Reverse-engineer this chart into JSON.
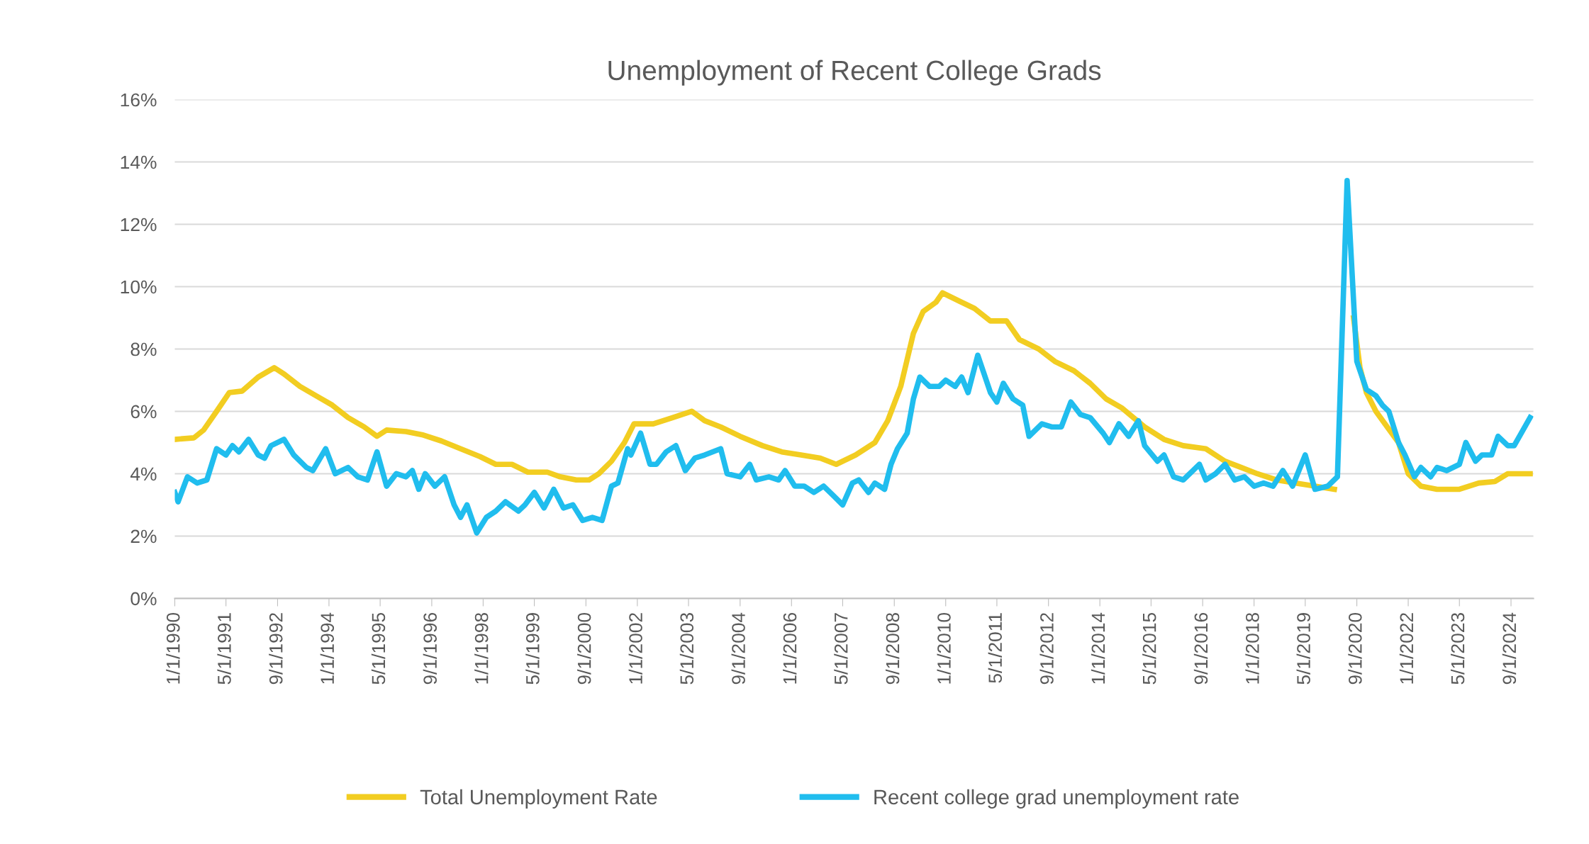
{
  "chart_data": {
    "type": "line",
    "title": "Unemployment of Recent College Grads",
    "xlim": [
      "1990-01-01",
      "2025-04-01"
    ],
    "xticks": [
      {
        "value": "1990-01-01",
        "label": "1/1/1990"
      },
      {
        "value": "1991-05-01",
        "label": "5/1/1991"
      },
      {
        "value": "1992-09-01",
        "label": "9/1/1992"
      },
      {
        "value": "1994-01-01",
        "label": "1/1/1994"
      },
      {
        "value": "1995-05-01",
        "label": "5/1/1995"
      },
      {
        "value": "1996-09-01",
        "label": "9/1/1996"
      },
      {
        "value": "1998-01-01",
        "label": "1/1/1998"
      },
      {
        "value": "1999-05-01",
        "label": "5/1/1999"
      },
      {
        "value": "2000-09-01",
        "label": "9/1/2000"
      },
      {
        "value": "2002-01-01",
        "label": "1/1/2002"
      },
      {
        "value": "2003-05-01",
        "label": "5/1/2003"
      },
      {
        "value": "2004-09-01",
        "label": "9/1/2004"
      },
      {
        "value": "2006-01-01",
        "label": "1/1/2006"
      },
      {
        "value": "2007-05-01",
        "label": "5/1/2007"
      },
      {
        "value": "2008-09-01",
        "label": "9/1/2008"
      },
      {
        "value": "2010-01-01",
        "label": "1/1/2010"
      },
      {
        "value": "2011-05-01",
        "label": "5/1/2011"
      },
      {
        "value": "2012-09-01",
        "label": "9/1/2012"
      },
      {
        "value": "2014-01-01",
        "label": "1/1/2014"
      },
      {
        "value": "2015-05-01",
        "label": "5/1/2015"
      },
      {
        "value": "2016-09-01",
        "label": "9/1/2016"
      },
      {
        "value": "2018-01-01",
        "label": "1/1/2018"
      },
      {
        "value": "2019-05-01",
        "label": "5/1/2019"
      },
      {
        "value": "2020-09-01",
        "label": "9/1/2020"
      },
      {
        "value": "2022-01-01",
        "label": "1/1/2022"
      },
      {
        "value": "2023-05-01",
        "label": "5/1/2023"
      },
      {
        "value": "2024-09-01",
        "label": "9/1/2024"
      }
    ],
    "ylim": [
      0,
      16
    ],
    "yticks": [
      {
        "value": 0,
        "label": "0%"
      },
      {
        "value": 2,
        "label": "2%"
      },
      {
        "value": 4,
        "label": "4%"
      },
      {
        "value": 6,
        "label": "6%"
      },
      {
        "value": 8,
        "label": "8%"
      },
      {
        "value": 10,
        "label": "10%"
      },
      {
        "value": 12,
        "label": "12%"
      },
      {
        "value": 14,
        "label": "14%"
      },
      {
        "value": 16,
        "label": "16%"
      }
    ],
    "grid": "y",
    "legend": "bottom",
    "marker": "none",
    "line_style": "solid",
    "series": [
      {
        "name": "Total Unemployment Rate",
        "color": "#f2cd21",
        "x": [
          "1990-01",
          "1990-07",
          "1990-10",
          "1991-02",
          "1991-06",
          "1991-10",
          "1992-03",
          "1992-08",
          "1992-11",
          "1993-04",
          "1993-09",
          "1994-02",
          "1994-07",
          "1994-12",
          "1995-04",
          "1995-07",
          "1996-01",
          "1996-06",
          "1996-12",
          "1997-06",
          "1997-12",
          "1998-05",
          "1998-10",
          "1999-03",
          "1999-09",
          "2000-01",
          "2000-06",
          "2000-10",
          "2001-01",
          "2001-05",
          "2001-09",
          "2001-12",
          "2002-06",
          "2002-12",
          "2003-06",
          "2003-10",
          "2004-03",
          "2004-09",
          "2005-04",
          "2005-10",
          "2006-04",
          "2006-10",
          "2007-03",
          "2007-09",
          "2008-03",
          "2008-07",
          "2008-11",
          "2009-03",
          "2009-06",
          "2009-10",
          "2009-12",
          "2010-06",
          "2010-10",
          "2011-03",
          "2011-08",
          "2011-12",
          "2012-06",
          "2012-11",
          "2013-05",
          "2013-10",
          "2014-03",
          "2014-08",
          "2015-03",
          "2015-09",
          "2016-03",
          "2016-10",
          "2017-04",
          "2017-09",
          "2018-02",
          "2018-08",
          "2019-02",
          "2019-08",
          "2020-02",
          "2020-06",
          "2020-08",
          "2020-10",
          "2020-12",
          "2021-03",
          "2021-10",
          "2022-01",
          "2022-05",
          "2022-10",
          "2023-05",
          "2023-11",
          "2024-04",
          "2024-08",
          "2025-03"
        ],
        "values": [
          5.1,
          5.15,
          5.4,
          6.0,
          6.6,
          6.65,
          7.1,
          7.4,
          7.2,
          6.8,
          6.5,
          6.2,
          5.8,
          5.5,
          5.2,
          5.4,
          5.35,
          5.25,
          5.05,
          4.8,
          4.55,
          4.3,
          4.3,
          4.05,
          4.05,
          3.9,
          3.8,
          3.8,
          4.0,
          4.4,
          5.0,
          5.6,
          5.6,
          5.8,
          6.0,
          5.7,
          5.5,
          5.2,
          4.9,
          4.7,
          4.6,
          4.5,
          4.3,
          4.6,
          5.0,
          5.7,
          6.8,
          8.5,
          9.2,
          9.5,
          9.8,
          9.5,
          9.3,
          8.9,
          8.9,
          8.3,
          8.0,
          7.6,
          7.3,
          6.9,
          6.4,
          6.1,
          5.5,
          5.1,
          4.9,
          4.8,
          4.4,
          4.2,
          4.0,
          3.8,
          3.7,
          3.6,
          3.5,
          null,
          9.0,
          7.4,
          6.6,
          6.0,
          5.0,
          4.0,
          3.6,
          3.5,
          3.5,
          3.7,
          3.75,
          4.0,
          4.0
        ]
      },
      {
        "name": "Recent college grad unemployment rate",
        "color": "#20bdee",
        "x": [
          "1990-01",
          "1990-02",
          "1990-05",
          "1990-08",
          "1990-11",
          "1991-02",
          "1991-05",
          "1991-07",
          "1991-09",
          "1991-12",
          "1992-03",
          "1992-05",
          "1992-07",
          "1992-11",
          "1993-02",
          "1993-06",
          "1993-08",
          "1993-12",
          "1994-03",
          "1994-07",
          "1994-10",
          "1995-01",
          "1995-04",
          "1995-07",
          "1995-10",
          "1996-01",
          "1996-03",
          "1996-05",
          "1996-07",
          "1996-10",
          "1997-01",
          "1997-04",
          "1997-06",
          "1997-08",
          "1997-11",
          "1998-02",
          "1998-05",
          "1998-08",
          "1998-12",
          "1999-02",
          "1999-05",
          "1999-08",
          "1999-11",
          "2000-02",
          "2000-05",
          "2000-08",
          "2000-11",
          "2001-02",
          "2001-05",
          "2001-07",
          "2001-10",
          "2001-11",
          "2002-02",
          "2002-05",
          "2002-07",
          "2002-10",
          "2003-01",
          "2003-04",
          "2003-07",
          "2003-10",
          "2004-03",
          "2004-05",
          "2004-09",
          "2004-12",
          "2005-02",
          "2005-06",
          "2005-09",
          "2005-11",
          "2006-02",
          "2006-05",
          "2006-08",
          "2006-11",
          "2007-02",
          "2007-05",
          "2007-08",
          "2007-10",
          "2008-01",
          "2008-03",
          "2008-06",
          "2008-08",
          "2008-10",
          "2009-01",
          "2009-03",
          "2009-05",
          "2009-08",
          "2009-11",
          "2010-01",
          "2010-04",
          "2010-06",
          "2010-08",
          "2010-11",
          "2011-03",
          "2011-05",
          "2011-07",
          "2011-10",
          "2012-01",
          "2012-03",
          "2012-07",
          "2012-10",
          "2013-01",
          "2013-04",
          "2013-07",
          "2013-10",
          "2014-02",
          "2014-04",
          "2014-07",
          "2014-10",
          "2015-01",
          "2015-03",
          "2015-07",
          "2015-09",
          "2015-12",
          "2016-03",
          "2016-05",
          "2016-08",
          "2016-10",
          "2017-01",
          "2017-04",
          "2017-07",
          "2017-10",
          "2018-01",
          "2018-04",
          "2018-07",
          "2018-10",
          "2019-01",
          "2019-05",
          "2019-08",
          "2019-12",
          "2020-03",
          "2020-06",
          "2020-09",
          "2020-12",
          "2021-03",
          "2021-05",
          "2021-07",
          "2021-10",
          "2021-12",
          "2022-03",
          "2022-05",
          "2022-08",
          "2022-10",
          "2023-01",
          "2023-05",
          "2023-07",
          "2023-10",
          "2023-12",
          "2024-03",
          "2024-05",
          "2024-08",
          "2024-10",
          "2025-03"
        ],
        "values": [
          3.4,
          3.1,
          3.9,
          3.7,
          3.8,
          4.8,
          4.6,
          4.9,
          4.7,
          5.1,
          4.6,
          4.5,
          4.9,
          5.1,
          4.6,
          4.2,
          4.1,
          4.8,
          4.0,
          4.2,
          3.9,
          3.8,
          4.7,
          3.6,
          4.0,
          3.9,
          4.1,
          3.5,
          4.0,
          3.6,
          3.9,
          3.0,
          2.6,
          3.0,
          2.1,
          2.6,
          2.8,
          3.1,
          2.8,
          3.0,
          3.4,
          2.9,
          3.5,
          2.9,
          3.0,
          2.5,
          2.6,
          2.5,
          3.6,
          3.7,
          4.8,
          4.6,
          5.3,
          4.3,
          4.3,
          4.7,
          4.9,
          4.1,
          4.5,
          4.6,
          4.8,
          4.0,
          3.9,
          4.3,
          3.8,
          3.9,
          3.8,
          4.1,
          3.6,
          3.6,
          3.4,
          3.6,
          3.3,
          3.0,
          3.7,
          3.8,
          3.4,
          3.7,
          3.5,
          4.3,
          4.8,
          5.3,
          6.4,
          7.1,
          6.8,
          6.8,
          7.0,
          6.8,
          7.1,
          6.6,
          7.8,
          6.6,
          6.3,
          6.9,
          6.4,
          6.2,
          5.2,
          5.6,
          5.5,
          5.5,
          6.3,
          5.9,
          5.8,
          5.3,
          5.0,
          5.6,
          5.2,
          5.7,
          4.9,
          4.4,
          4.6,
          3.9,
          3.8,
          4.0,
          4.3,
          3.8,
          4.0,
          4.3,
          3.8,
          3.9,
          3.6,
          3.7,
          3.6,
          4.1,
          3.6,
          4.6,
          3.5,
          3.6,
          3.9,
          13.4,
          7.6,
          6.7,
          6.5,
          6.2,
          6.0,
          5.0,
          4.6,
          3.9,
          4.2,
          3.9,
          4.2,
          4.1,
          4.3,
          5.0,
          4.4,
          4.6,
          4.6,
          5.2,
          4.9,
          4.9,
          5.8
        ]
      }
    ]
  }
}
